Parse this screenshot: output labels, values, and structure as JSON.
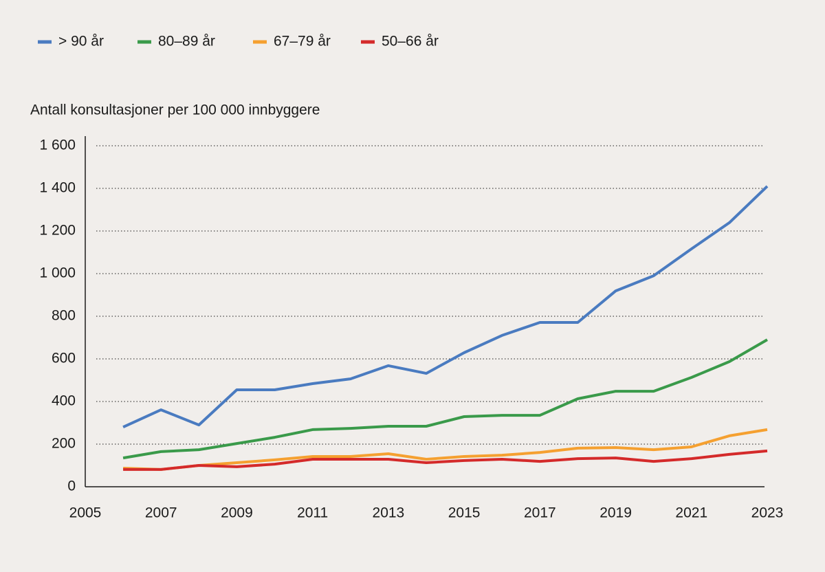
{
  "chart_data": {
    "type": "line",
    "y_label": "Antall konsultasjoner per 100 000 innbyggere",
    "x": [
      2006,
      2007,
      2008,
      2009,
      2010,
      2011,
      2012,
      2013,
      2014,
      2015,
      2016,
      2017,
      2018,
      2019,
      2020,
      2021,
      2022,
      2023
    ],
    "series": [
      {
        "name": "> 90 år",
        "color": "#4a7bc0",
        "values": [
          280,
          361,
          290,
          455,
          455,
          484,
          506,
          568,
          532,
          629,
          710,
          771,
          771,
          919,
          990,
          1116,
          1239,
          1410
        ]
      },
      {
        "name": "80–89 år",
        "color": "#3a9a4a",
        "values": [
          135,
          165,
          174,
          203,
          232,
          268,
          274,
          284,
          284,
          329,
          335,
          335,
          413,
          448,
          448,
          513,
          587,
          690
        ]
      },
      {
        "name": "67–79 år",
        "color": "#f5a030",
        "values": [
          87,
          81,
          100,
          113,
          126,
          142,
          142,
          155,
          129,
          142,
          148,
          161,
          181,
          184,
          174,
          187,
          239,
          268
        ]
      },
      {
        "name": "50–66 år",
        "color": "#d42a2a",
        "values": [
          81,
          81,
          100,
          94,
          106,
          129,
          129,
          129,
          113,
          123,
          129,
          119,
          132,
          135,
          119,
          132,
          152,
          168
        ]
      }
    ],
    "xlim": [
      2005,
      2023
    ],
    "xticks": [
      2005,
      2007,
      2009,
      2011,
      2013,
      2015,
      2017,
      2019,
      2021,
      2023
    ],
    "ylim": [
      0,
      1600
    ],
    "yticks": [
      0,
      200,
      400,
      600,
      800,
      {
        "value": 1000,
        "label": "1 000"
      },
      {
        "value": 1200,
        "label": "1 200"
      },
      {
        "value": 1400,
        "label": "1 400"
      },
      {
        "value": 1600,
        "label": "1 600"
      }
    ],
    "grid": true,
    "legend": "top-left"
  }
}
